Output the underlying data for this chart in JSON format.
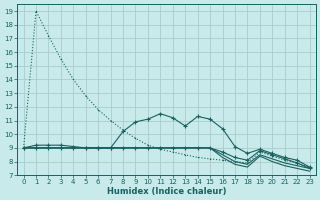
{
  "xlabel": "Humidex (Indice chaleur)",
  "bg_color": "#c8eaea",
  "grid_color": "#a8cccc",
  "line_color": "#1a6060",
  "xlim": [
    -0.5,
    23.5
  ],
  "ylim": [
    7.0,
    19.5
  ],
  "yticks": [
    7,
    8,
    9,
    10,
    11,
    12,
    13,
    14,
    15,
    16,
    17,
    18,
    19
  ],
  "xticks": [
    0,
    1,
    2,
    3,
    4,
    5,
    6,
    7,
    8,
    9,
    10,
    11,
    12,
    13,
    14,
    15,
    16,
    17,
    18,
    19,
    20,
    21,
    22,
    23
  ],
  "line1_x": [
    0,
    1,
    2,
    3,
    4,
    5,
    6,
    7,
    8,
    9,
    10,
    11,
    12,
    13,
    14,
    15,
    16,
    17,
    18,
    19,
    20,
    21,
    22,
    23
  ],
  "line1_y": [
    9.0,
    19.0,
    17.2,
    15.5,
    14.0,
    12.8,
    11.8,
    11.0,
    10.3,
    9.7,
    9.2,
    8.9,
    8.7,
    8.5,
    8.3,
    8.2,
    8.1,
    8.0,
    7.9,
    8.7,
    8.4,
    8.1,
    7.9,
    7.6
  ],
  "line2_x": [
    0,
    1,
    2,
    3,
    4,
    5,
    6,
    7,
    8,
    9,
    10,
    11,
    12,
    13,
    14,
    15,
    16,
    17,
    18,
    19,
    20,
    21,
    22,
    23
  ],
  "line2_y": [
    9.0,
    9.2,
    9.2,
    9.2,
    9.1,
    9.0,
    9.0,
    9.0,
    10.2,
    10.9,
    11.1,
    11.5,
    11.2,
    10.6,
    11.3,
    11.1,
    10.4,
    9.1,
    8.6,
    8.9,
    8.6,
    8.3,
    8.1,
    7.6
  ],
  "line3_x": [
    0,
    1,
    2,
    3,
    4,
    5,
    6,
    7,
    8,
    9,
    10,
    11,
    12,
    13,
    14,
    15,
    16,
    17,
    18,
    19,
    20,
    21,
    22,
    23
  ],
  "line3_y": [
    9.0,
    9.0,
    9.0,
    9.0,
    9.0,
    9.0,
    9.0,
    9.0,
    9.0,
    9.0,
    9.0,
    9.0,
    9.0,
    9.0,
    9.0,
    9.0,
    8.7,
    8.3,
    8.1,
    8.8,
    8.5,
    8.2,
    7.9,
    7.5
  ],
  "line4_x": [
    0,
    1,
    2,
    3,
    4,
    5,
    6,
    7,
    8,
    9,
    10,
    11,
    12,
    13,
    14,
    15,
    16,
    17,
    18,
    19,
    20,
    21,
    22,
    23
  ],
  "line4_y": [
    9.0,
    9.0,
    9.0,
    9.0,
    9.0,
    9.0,
    9.0,
    9.0,
    9.0,
    9.0,
    9.0,
    9.0,
    9.0,
    9.0,
    9.0,
    9.0,
    8.5,
    8.0,
    7.8,
    8.5,
    8.2,
    7.9,
    7.7,
    7.5
  ],
  "line5_x": [
    0,
    1,
    2,
    3,
    4,
    5,
    6,
    7,
    8,
    9,
    10,
    11,
    12,
    13,
    14,
    15,
    16,
    17,
    18,
    19,
    20,
    21,
    22,
    23
  ],
  "line5_y": [
    9.0,
    9.0,
    9.0,
    9.0,
    9.0,
    9.0,
    9.0,
    9.0,
    9.0,
    9.0,
    9.0,
    9.0,
    9.0,
    9.0,
    9.0,
    9.0,
    8.3,
    7.8,
    7.6,
    8.4,
    8.0,
    7.7,
    7.5,
    7.3
  ]
}
